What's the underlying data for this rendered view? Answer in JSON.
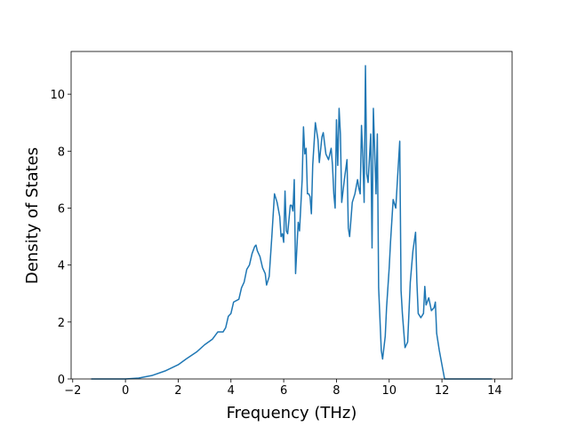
{
  "chart_data": {
    "type": "line",
    "x_label": "Frequency (THz)",
    "y_label": "Density of States",
    "color": "#1f77b4",
    "x": [
      -1.3,
      0,
      0.5,
      1.0,
      1.5,
      2.0,
      2.3,
      2.7,
      3.0,
      3.3,
      3.5,
      3.7,
      3.8,
      3.9,
      4.0,
      4.1,
      4.3,
      4.4,
      4.5,
      4.6,
      4.7,
      4.8,
      4.9,
      4.95,
      5.0,
      5.1,
      5.2,
      5.3,
      5.35,
      5.45,
      5.55,
      5.65,
      5.75,
      5.85,
      5.9,
      5.95,
      6.0,
      6.05,
      6.1,
      6.15,
      6.25,
      6.3,
      6.35,
      6.4,
      6.45,
      6.55,
      6.6,
      6.7,
      6.75,
      6.8,
      6.85,
      6.9,
      6.95,
      7.0,
      7.05,
      7.1,
      7.2,
      7.25,
      7.3,
      7.35,
      7.45,
      7.5,
      7.6,
      7.7,
      7.8,
      7.85,
      7.9,
      7.95,
      8.0,
      8.05,
      8.1,
      8.15,
      8.2,
      8.3,
      8.4,
      8.45,
      8.5,
      8.6,
      8.7,
      8.8,
      8.85,
      8.9,
      8.95,
      9.0,
      9.05,
      9.1,
      9.15,
      9.2,
      9.3,
      9.35,
      9.4,
      9.5,
      9.55,
      9.6,
      9.7,
      9.75,
      9.85,
      9.9,
      10.0,
      10.05,
      10.15,
      10.25,
      10.3,
      10.4,
      10.45,
      10.5,
      10.6,
      10.7,
      10.8,
      10.9,
      11.0,
      11.05,
      11.1,
      11.2,
      11.3,
      11.35,
      11.4,
      11.5,
      11.6,
      11.7,
      11.75,
      11.8,
      11.9,
      12.0,
      12.1,
      13.9
    ],
    "values": [
      0,
      0,
      0.03,
      0.12,
      0.28,
      0.5,
      0.7,
      0.95,
      1.2,
      1.4,
      1.65,
      1.65,
      1.8,
      2.2,
      2.3,
      2.7,
      2.8,
      3.2,
      3.4,
      3.85,
      4.0,
      4.4,
      4.65,
      4.7,
      4.5,
      4.3,
      3.9,
      3.7,
      3.3,
      3.6,
      5.0,
      6.5,
      6.2,
      5.7,
      5.0,
      5.1,
      4.8,
      6.6,
      5.2,
      5.1,
      6.1,
      6.1,
      5.9,
      7.0,
      3.7,
      5.5,
      5.2,
      7.0,
      8.85,
      7.9,
      8.1,
      6.5,
      6.5,
      6.4,
      5.8,
      7.5,
      9.0,
      8.7,
      8.4,
      7.6,
      8.5,
      8.65,
      7.9,
      7.7,
      8.1,
      7.5,
      6.5,
      6.0,
      9.1,
      7.5,
      9.5,
      8.6,
      6.2,
      7.0,
      7.7,
      5.3,
      5.0,
      6.2,
      6.5,
      7.0,
      6.7,
      6.5,
      8.9,
      7.8,
      6.2,
      11.0,
      7.2,
      6.9,
      8.6,
      4.6,
      9.5,
      6.5,
      8.6,
      3.2,
      1.0,
      0.7,
      1.5,
      2.5,
      3.9,
      4.8,
      6.3,
      6.0,
      6.8,
      8.35,
      3.1,
      2.3,
      1.1,
      1.3,
      3.4,
      4.5,
      5.15,
      3.4,
      2.3,
      2.15,
      2.3,
      3.25,
      2.6,
      2.85,
      2.4,
      2.5,
      2.7,
      1.6,
      1.0,
      0.5,
      0,
      0
    ],
    "xlim": [
      -2.06,
      14.66
    ],
    "ylim": [
      0,
      11.5
    ],
    "xticks": [
      {
        "value": -2,
        "label": "−2"
      },
      0,
      2,
      4,
      6,
      8,
      10,
      12,
      14
    ],
    "yticks": [
      0,
      2,
      4,
      6,
      8,
      10
    ]
  }
}
